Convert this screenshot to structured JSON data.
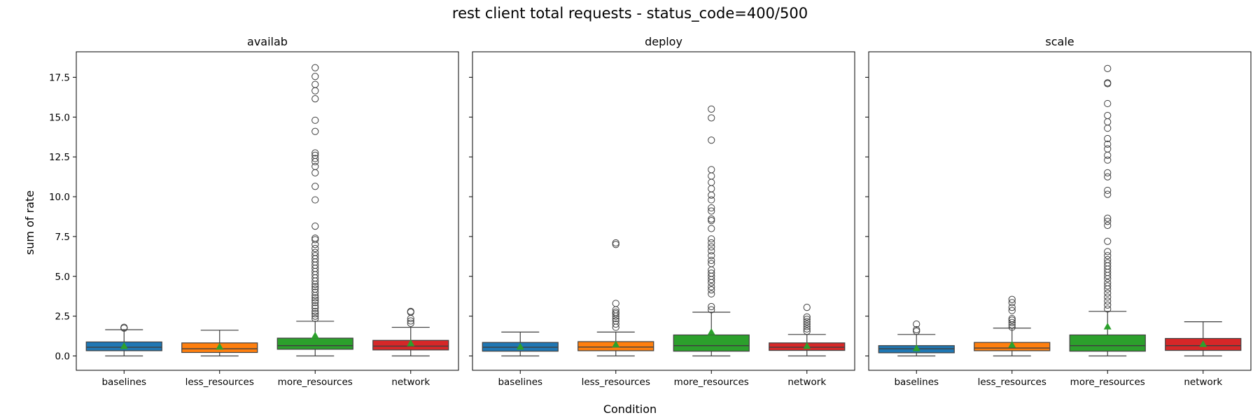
{
  "chart_data": {
    "type": "box",
    "title": "rest client total requests - status_code=400/500",
    "xlabel": "Condition",
    "ylabel": "sum of rate",
    "ylim": [
      -0.9,
      19.1
    ],
    "yticks": [
      0.0,
      2.5,
      5.0,
      7.5,
      10.0,
      12.5,
      15.0,
      17.5
    ],
    "ytick_labels": [
      "0.0",
      "2.5",
      "5.0",
      "7.5",
      "10.0",
      "12.5",
      "15.0",
      "17.5"
    ],
    "categories": [
      "baselines",
      "less_resources",
      "more_resources",
      "network"
    ],
    "colors": [
      "#1f77b4",
      "#ff7f0e",
      "#2ca02c",
      "#d62728"
    ],
    "mean_marker_color": "#2ca02c",
    "shared_y": true,
    "panels": [
      {
        "title": "availab",
        "boxes": [
          {
            "category": "baselines",
            "min": 0.0,
            "q1": 0.33,
            "median": 0.55,
            "q3": 0.88,
            "max": 1.65,
            "mean": 0.62,
            "fliers": [
              1.75,
              1.8
            ]
          },
          {
            "category": "less_resources",
            "min": 0.0,
            "q1": 0.22,
            "median": 0.45,
            "q3": 0.82,
            "max": 1.62,
            "mean": 0.58,
            "fliers": []
          },
          {
            "category": "more_resources",
            "min": 0.0,
            "q1": 0.42,
            "median": 0.65,
            "q3": 1.12,
            "max": 2.18,
            "mean": 1.28,
            "fliers": [
              2.35,
              2.5,
              2.65,
              2.8,
              3.0,
              3.15,
              3.35,
              3.5,
              3.65,
              3.8,
              4.0,
              4.2,
              4.35,
              4.5,
              4.7,
              4.9,
              5.1,
              5.3,
              5.5,
              5.7,
              5.9,
              6.1,
              6.3,
              6.5,
              6.75,
              7.0,
              7.3,
              7.4,
              8.15,
              9.8,
              10.65,
              11.5,
              11.9,
              12.2,
              12.4,
              12.6,
              12.75,
              14.1,
              14.8,
              16.15,
              16.65,
              17.05,
              17.55,
              18.1
            ]
          },
          {
            "category": "network",
            "min": 0.0,
            "q1": 0.38,
            "median": 0.62,
            "q3": 0.98,
            "max": 1.8,
            "mean": 0.8,
            "fliers": [
              2.05,
              2.2,
              2.35,
              2.75,
              2.8
            ]
          }
        ]
      },
      {
        "title": "deploy",
        "boxes": [
          {
            "category": "baselines",
            "min": 0.0,
            "q1": 0.3,
            "median": 0.55,
            "q3": 0.85,
            "max": 1.5,
            "mean": 0.58,
            "fliers": []
          },
          {
            "category": "less_resources",
            "min": 0.0,
            "q1": 0.33,
            "median": 0.56,
            "q3": 0.9,
            "max": 1.5,
            "mean": 0.72,
            "fliers": [
              1.8,
              2.0,
              2.2,
              2.35,
              2.5,
              2.65,
              2.75,
              2.9,
              3.3,
              7.0,
              7.1
            ]
          },
          {
            "category": "more_resources",
            "min": 0.0,
            "q1": 0.3,
            "median": 0.65,
            "q3": 1.32,
            "max": 2.75,
            "mean": 1.5,
            "fliers": [
              2.9,
              3.1,
              3.9,
              4.15,
              4.35,
              4.6,
              4.8,
              5.0,
              5.2,
              5.4,
              5.8,
              6.0,
              6.3,
              6.6,
              6.85,
              7.1,
              7.35,
              8.0,
              8.5,
              8.6,
              9.1,
              9.3,
              9.8,
              10.1,
              10.5,
              10.9,
              11.3,
              11.7,
              13.55,
              14.95,
              15.5
            ]
          },
          {
            "category": "network",
            "min": 0.0,
            "q1": 0.35,
            "median": 0.55,
            "q3": 0.82,
            "max": 1.35,
            "mean": 0.62,
            "fliers": [
              1.55,
              1.7,
              1.85,
              2.0,
              2.15,
              2.3,
              2.45,
              3.05
            ]
          }
        ]
      },
      {
        "title": "scale",
        "boxes": [
          {
            "category": "baselines",
            "min": 0.0,
            "q1": 0.2,
            "median": 0.45,
            "q3": 0.65,
            "max": 1.35,
            "mean": 0.48,
            "fliers": [
              1.55,
              1.65,
              2.0
            ]
          },
          {
            "category": "less_resources",
            "min": 0.0,
            "q1": 0.33,
            "median": 0.5,
            "q3": 0.85,
            "max": 1.75,
            "mean": 0.7,
            "fliers": [
              1.8,
              1.95,
              2.1,
              2.25,
              2.35,
              2.85,
              3.05,
              3.35,
              3.55
            ]
          },
          {
            "category": "more_resources",
            "min": 0.0,
            "q1": 0.3,
            "median": 0.65,
            "q3": 1.32,
            "max": 2.8,
            "mean": 1.85,
            "fliers": [
              2.95,
              3.2,
              3.45,
              3.7,
              3.95,
              4.2,
              4.4,
              4.6,
              4.85,
              5.05,
              5.25,
              5.45,
              5.65,
              5.85,
              6.05,
              6.3,
              6.55,
              7.2,
              8.2,
              8.45,
              8.65,
              10.15,
              10.4,
              11.25,
              11.5,
              12.3,
              12.6,
              13.0,
              13.3,
              13.65,
              14.3,
              14.7,
              15.1,
              15.85,
              17.1,
              17.15,
              18.05
            ]
          },
          {
            "category": "network",
            "min": 0.0,
            "q1": 0.35,
            "median": 0.65,
            "q3": 1.1,
            "max": 2.15,
            "mean": 0.75,
            "fliers": []
          }
        ]
      }
    ]
  }
}
